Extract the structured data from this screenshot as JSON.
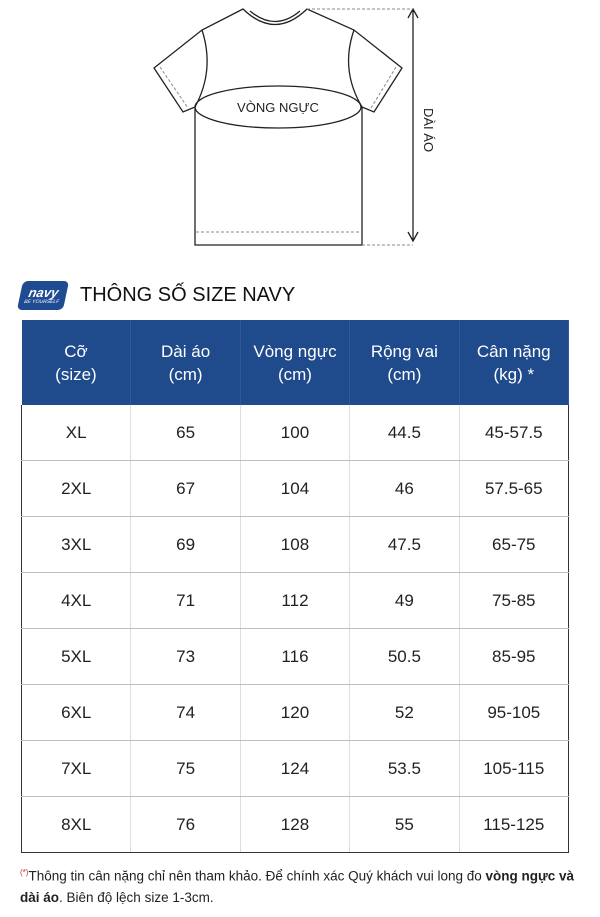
{
  "diagram": {
    "chest_label": "VÒNG NGỰC",
    "length_label": "DÀI ÁO"
  },
  "brand": {
    "logo_text": "navy",
    "logo_tagline": "BE YOURSELF",
    "title": "THÔNG SỐ SIZE NAVY"
  },
  "table": {
    "headers": [
      {
        "line1": "Cỡ",
        "line2": "(size)"
      },
      {
        "line1": "Dài áo",
        "line2": "(cm)"
      },
      {
        "line1": "Vòng ngực",
        "line2": "(cm)"
      },
      {
        "line1": "Rộng vai",
        "line2": "(cm)"
      },
      {
        "line1": "Cân nặng",
        "line2": "(kg) *"
      }
    ],
    "rows": [
      [
        "XL",
        "65",
        "100",
        "44.5",
        "45-57.5"
      ],
      [
        "2XL",
        "67",
        "104",
        "46",
        "57.5-65"
      ],
      [
        "3XL",
        "69",
        "108",
        "47.5",
        "65-75"
      ],
      [
        "4XL",
        "71",
        "112",
        "49",
        "75-85"
      ],
      [
        "5XL",
        "73",
        "116",
        "50.5",
        "85-95"
      ],
      [
        "6XL",
        "74",
        "120",
        "52",
        "95-105"
      ],
      [
        "7XL",
        "75",
        "124",
        "53.5",
        "105-115"
      ],
      [
        "8XL",
        "76",
        "128",
        "55",
        "115-125"
      ]
    ],
    "header_color": "#1f4a8c"
  },
  "note": {
    "marker": "(*)",
    "text1": "Thông tin cân nặng chỉ nên tham khảo. Để chính xác Quý khách vui long đo ",
    "bold": "vòng ngực và dài áo",
    "text2": ". Biên độ lệch size 1-3cm."
  }
}
